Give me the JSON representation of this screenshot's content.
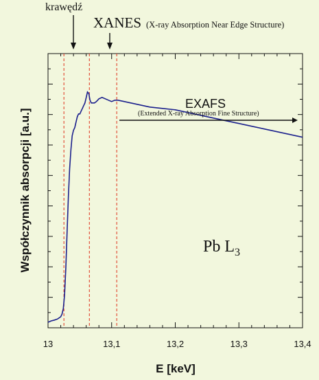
{
  "colors": {
    "background": "#f2f7dd",
    "curve": "#1a1f8c",
    "marker_lines": "#e0402a",
    "axis": "#111111"
  },
  "chart_data": {
    "type": "line",
    "xlabel": "E [keV]",
    "ylabel": "Współczynnik absorpcji [a.u.]",
    "xlim": [
      13.0,
      13.4
    ],
    "ylim": [
      0,
      1
    ],
    "x_ticks": [
      "13",
      "13,1",
      "13,2",
      "13,3",
      "13,4"
    ],
    "x_tick_values": [
      13.0,
      13.1,
      13.2,
      13.3,
      13.4
    ],
    "grid": false,
    "y_tick_labels_shown": false,
    "series": [
      {
        "x": [
          13.0,
          13.005,
          13.01,
          13.015,
          13.02,
          13.022,
          13.024,
          13.026,
          13.028,
          13.03,
          13.032,
          13.034,
          13.036,
          13.038,
          13.04,
          13.042,
          13.044,
          13.046,
          13.048,
          13.05,
          13.052,
          13.054,
          13.056,
          13.058,
          13.06,
          13.062,
          13.064,
          13.066,
          13.068,
          13.07,
          13.073,
          13.076,
          13.08,
          13.085,
          13.09,
          13.095,
          13.1,
          13.105,
          13.11,
          13.12,
          13.13,
          13.14,
          13.15,
          13.16,
          13.18,
          13.2,
          13.22,
          13.24,
          13.26,
          13.28,
          13.3,
          13.32,
          13.34,
          13.36,
          13.38,
          13.4
        ],
        "y": [
          0.02,
          0.025,
          0.028,
          0.032,
          0.04,
          0.05,
          0.07,
          0.12,
          0.22,
          0.35,
          0.48,
          0.58,
          0.65,
          0.7,
          0.72,
          0.73,
          0.75,
          0.77,
          0.78,
          0.78,
          0.79,
          0.8,
          0.81,
          0.82,
          0.84,
          0.86,
          0.855,
          0.83,
          0.82,
          0.82,
          0.82,
          0.825,
          0.835,
          0.84,
          0.835,
          0.83,
          0.825,
          0.83,
          0.83,
          0.825,
          0.82,
          0.815,
          0.81,
          0.805,
          0.8,
          0.795,
          0.785,
          0.775,
          0.765,
          0.755,
          0.745,
          0.735,
          0.725,
          0.715,
          0.705,
          0.695
        ]
      }
    ],
    "vertical_markers": [
      13.025,
      13.065,
      13.108
    ],
    "annotations": {
      "edge_label": "krawędź",
      "xanes_title": "XANES",
      "xanes_detail": "(X-ray Absorption Near Edge Structure)",
      "exafs_title": "EXAFS",
      "exafs_detail": "(Extended X-ray Absorption Fine Structure)",
      "element_label": "Pb L",
      "element_subscript": "3"
    }
  }
}
